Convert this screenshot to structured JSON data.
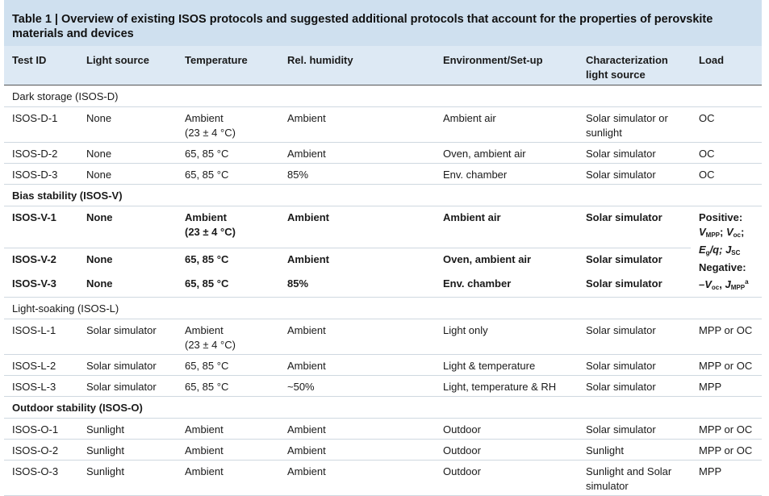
{
  "caption": {
    "table_number": "Table 1 |",
    "title": "Overview of existing ISOS protocols and suggested additional protocols that account for the properties of perovskite materials and devices"
  },
  "headers": [
    "Test ID",
    "Light source",
    "Temperature",
    "Rel. humidity",
    "Environment/Set-up",
    "Characterization light source",
    "Load"
  ],
  "sections": {
    "dark": "Dark storage (ISOS-D)",
    "bias": "Bias stability (ISOS-V)",
    "light": "Light-soaking (ISOS-L)",
    "outdoor": "Outdoor stability (ISOS-O)"
  },
  "rows": {
    "d1": [
      "ISOS-D-1",
      "None",
      "Ambient",
      "(23 ± 4 °C)",
      "Ambient",
      "Ambient air",
      "Solar simulator or",
      "sunlight",
      "OC"
    ],
    "d2": [
      "ISOS-D-2",
      "None",
      "65, 85 °C",
      "Ambient",
      "Oven, ambient air",
      "Solar simulator",
      "OC"
    ],
    "d3": [
      "ISOS-D-3",
      "None",
      "65, 85 °C",
      "85%",
      "Env. chamber",
      "Solar simulator",
      "OC"
    ],
    "v1": [
      "ISOS-V-1",
      "None",
      "Ambient",
      "(23 ± 4 °C)",
      "Ambient",
      "Ambient air",
      "Solar simulator"
    ],
    "v2": [
      "ISOS-V-2",
      "None",
      "65, 85 °C",
      "Ambient",
      "Oven, ambient air",
      "Solar simulator"
    ],
    "v3": [
      "ISOS-V-3",
      "None",
      "65, 85 °C",
      "85%",
      "Env. chamber",
      "Solar simulator"
    ],
    "l1": [
      "ISOS-L-1",
      "Solar simulator",
      "Ambient",
      "(23 ± 4 °C)",
      "Ambient",
      "Light only",
      "Solar simulator",
      "MPP or OC"
    ],
    "l2": [
      "ISOS-L-2",
      "Solar simulator",
      "65, 85 °C",
      "Ambient",
      "Light & temperature",
      "Solar simulator",
      "MPP or OC"
    ],
    "l3": [
      "ISOS-L-3",
      "Solar simulator",
      "65, 85 °C",
      "~50%",
      "Light, temperature & RH",
      "Solar simulator",
      "MPP"
    ],
    "o1": [
      "ISOS-O-1",
      "Sunlight",
      "Ambient",
      "Ambient",
      "Outdoor",
      "Solar simulator",
      "MPP or OC"
    ],
    "o2": [
      "ISOS-O-2",
      "Sunlight",
      "Ambient",
      "Ambient",
      "Outdoor",
      "Sunlight",
      "MPP or OC"
    ],
    "o3": [
      "ISOS-O-3",
      "Sunlight",
      "Ambient",
      "Ambient",
      "Outdoor",
      "Sunlight and Solar",
      "simulator",
      "MPP"
    ]
  },
  "bias_load": {
    "positive_label": "Positive:",
    "v_mpp": "V",
    "v_mpp_sub": "MPP",
    "sep1": "; ",
    "v_oc": "V",
    "v_oc_sub": "oc",
    "sep2": ";",
    "eg": "E",
    "eg_sub": "g",
    "eg_rest": "/q; ",
    "jsc": "J",
    "jsc_sub": "SC",
    "negative_label": "Negative:",
    "neg_v": "–V",
    "neg_v_sub": "oc",
    "sep3": ", ",
    "neg_j": "J",
    "neg_j_sub": "MPP",
    "neg_sup": "a"
  }
}
